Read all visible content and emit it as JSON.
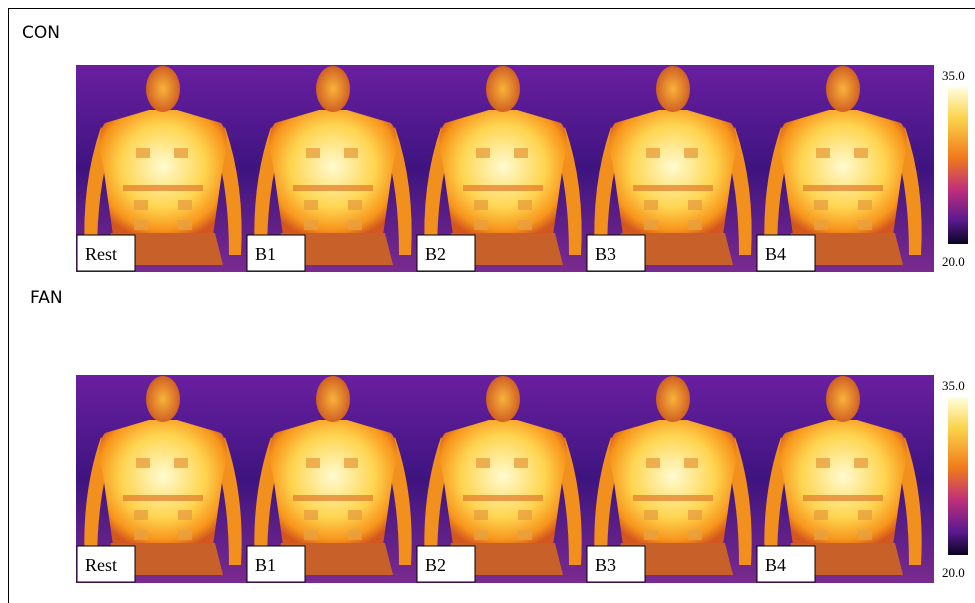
{
  "rows": [
    {
      "label": "CON",
      "panels": [
        "Rest",
        "B1",
        "B2",
        "B3",
        "B4"
      ],
      "scale_max": "35.0",
      "scale_min": "20.0"
    },
    {
      "label": "FAN",
      "panels": [
        "Rest",
        "B1",
        "B2",
        "B3",
        "B4"
      ],
      "scale_max": "35.0",
      "scale_min": "20.0"
    }
  ]
}
